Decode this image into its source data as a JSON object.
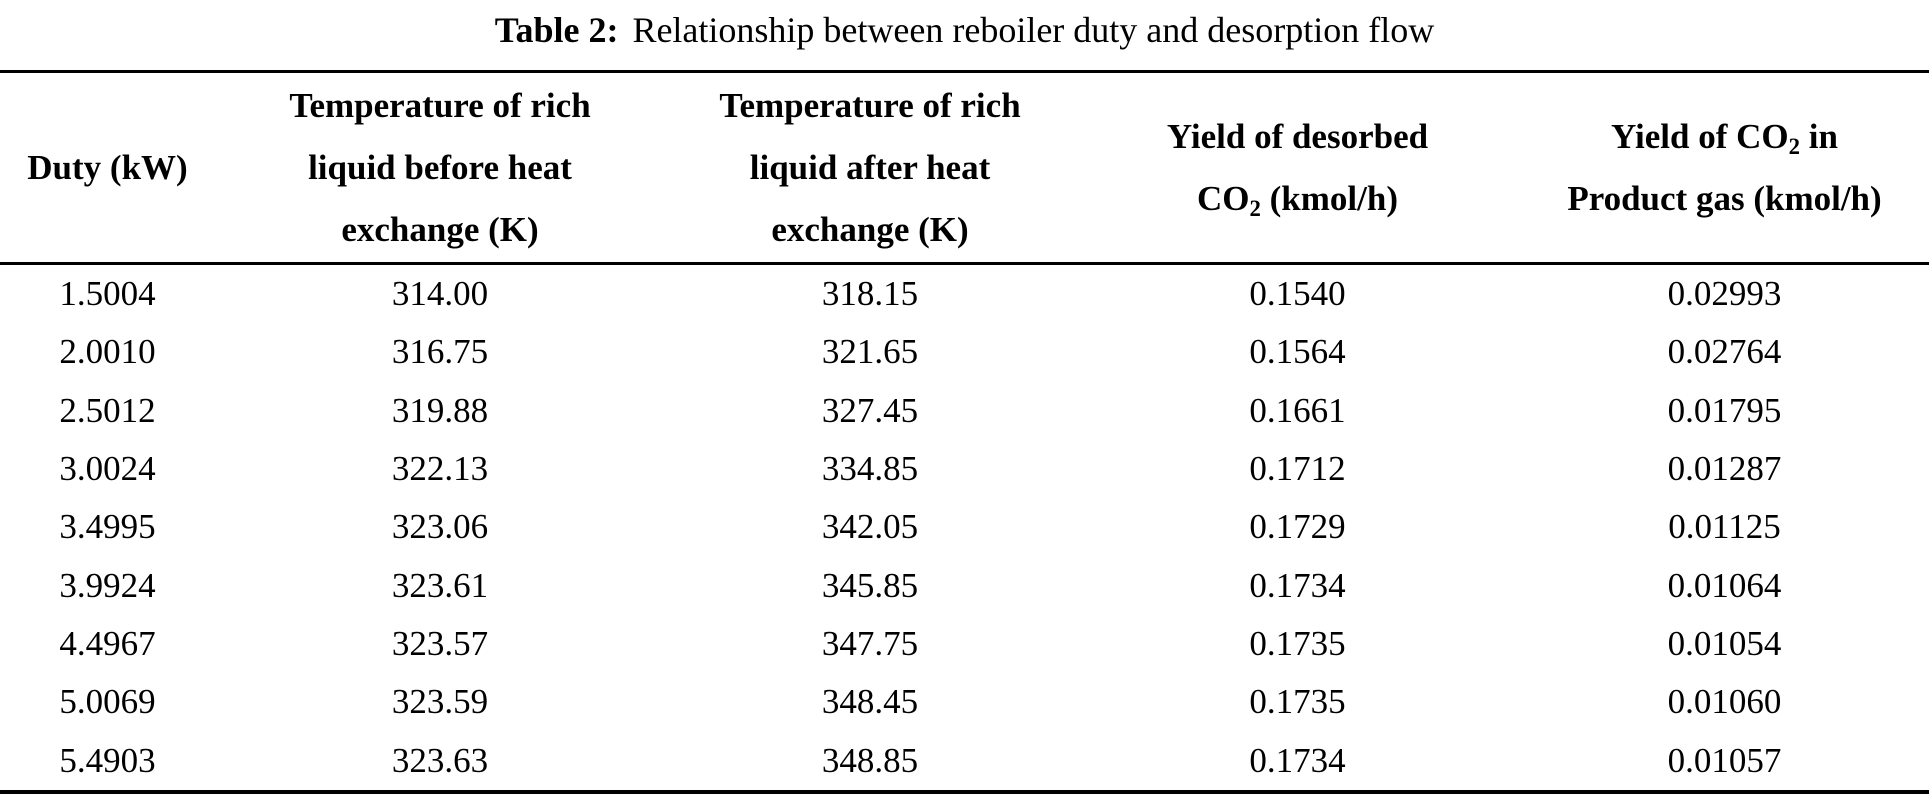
{
  "caption": {
    "label": "Table 2:",
    "text": "Relationship between reboiler duty and desorption flow"
  },
  "headers": [
    {
      "lines": [
        {
          "pre": "Duty (kW)"
        }
      ]
    },
    {
      "lines": [
        {
          "pre": "Temperature of rich"
        },
        {
          "pre": "liquid before heat"
        },
        {
          "pre": "exchange (K)"
        }
      ]
    },
    {
      "lines": [
        {
          "pre": "Temperature of rich"
        },
        {
          "pre": "liquid after heat"
        },
        {
          "pre": "exchange (K)"
        }
      ]
    },
    {
      "lines": [
        {
          "pre": "Yield of desorbed"
        },
        {
          "pre": "CO",
          "sub": "2",
          "post": " (kmol/h)"
        }
      ]
    },
    {
      "lines": [
        {
          "pre": "Yield of CO",
          "sub": "2",
          "post": " in"
        },
        {
          "pre": "Product gas (kmol/h)"
        }
      ]
    }
  ],
  "rows": [
    [
      "1.5004",
      "314.00",
      "318.15",
      "0.1540",
      "0.02993"
    ],
    [
      "2.0010",
      "316.75",
      "321.65",
      "0.1564",
      "0.02764"
    ],
    [
      "2.5012",
      "319.88",
      "327.45",
      "0.1661",
      "0.01795"
    ],
    [
      "3.0024",
      "322.13",
      "334.85",
      "0.1712",
      "0.01287"
    ],
    [
      "3.4995",
      "323.06",
      "342.05",
      "0.1729",
      "0.01125"
    ],
    [
      "3.9924",
      "323.61",
      "345.85",
      "0.1734",
      "0.01064"
    ],
    [
      "4.4967",
      "323.57",
      "347.75",
      "0.1735",
      "0.01054"
    ],
    [
      "5.0069",
      "323.59",
      "348.45",
      "0.1735",
      "0.01060"
    ],
    [
      "5.4903",
      "323.63",
      "348.85",
      "0.1734",
      "0.01057"
    ]
  ],
  "chart_data": {
    "type": "table",
    "title": "Table 2: Relationship between reboiler duty and desorption flow",
    "columns": [
      "Duty (kW)",
      "Temperature of rich liquid before heat exchange (K)",
      "Temperature of rich liquid after heat exchange (K)",
      "Yield of desorbed CO2 (kmol/h)",
      "Yield of CO2 in Product gas (kmol/h)"
    ],
    "rows": [
      [
        1.5004,
        314.0,
        318.15,
        0.154,
        0.02993
      ],
      [
        2.001,
        316.75,
        321.65,
        0.1564,
        0.02764
      ],
      [
        2.5012,
        319.88,
        327.45,
        0.1661,
        0.01795
      ],
      [
        3.0024,
        322.13,
        334.85,
        0.1712,
        0.01287
      ],
      [
        3.4995,
        323.06,
        342.05,
        0.1729,
        0.01125
      ],
      [
        3.9924,
        323.61,
        345.85,
        0.1734,
        0.01064
      ],
      [
        4.4967,
        323.57,
        347.75,
        0.1735,
        0.01054
      ],
      [
        5.0069,
        323.59,
        348.45,
        0.1735,
        0.0106
      ],
      [
        5.4903,
        323.63,
        348.85,
        0.1734,
        0.01057
      ]
    ]
  }
}
